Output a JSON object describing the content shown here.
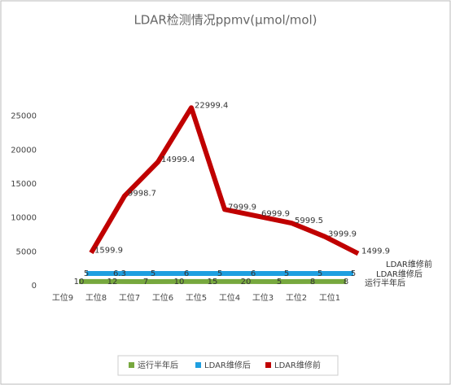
{
  "chart_data": {
    "type": "line3d",
    "title": "LDAR检测情况ppmv(μmol/mol)",
    "categories": [
      "工位9",
      "工位8",
      "工位7",
      "工位6",
      "工位5",
      "工位4",
      "工位3",
      "工位2",
      "工位1"
    ],
    "series": [
      {
        "name": "运行半年后",
        "color": "#77a83e",
        "values": [
          10,
          12,
          7,
          10,
          15,
          20,
          5,
          8,
          8
        ]
      },
      {
        "name": "LDAR维修后",
        "color": "#1e9fe0",
        "values": [
          5,
          6.3,
          5,
          6,
          5,
          6,
          5,
          5,
          5
        ]
      },
      {
        "name": "LDAR维修前",
        "color": "#c00000",
        "values": [
          1599.9,
          9998.7,
          14999.4,
          22999.4,
          7999.9,
          6999.9,
          5999.5,
          3999.9,
          1499.9
        ]
      }
    ],
    "ylim": [
      0,
      30000
    ],
    "yticks": [
      0,
      5000,
      10000,
      15000,
      20000,
      25000
    ],
    "legend": "bottom"
  }
}
